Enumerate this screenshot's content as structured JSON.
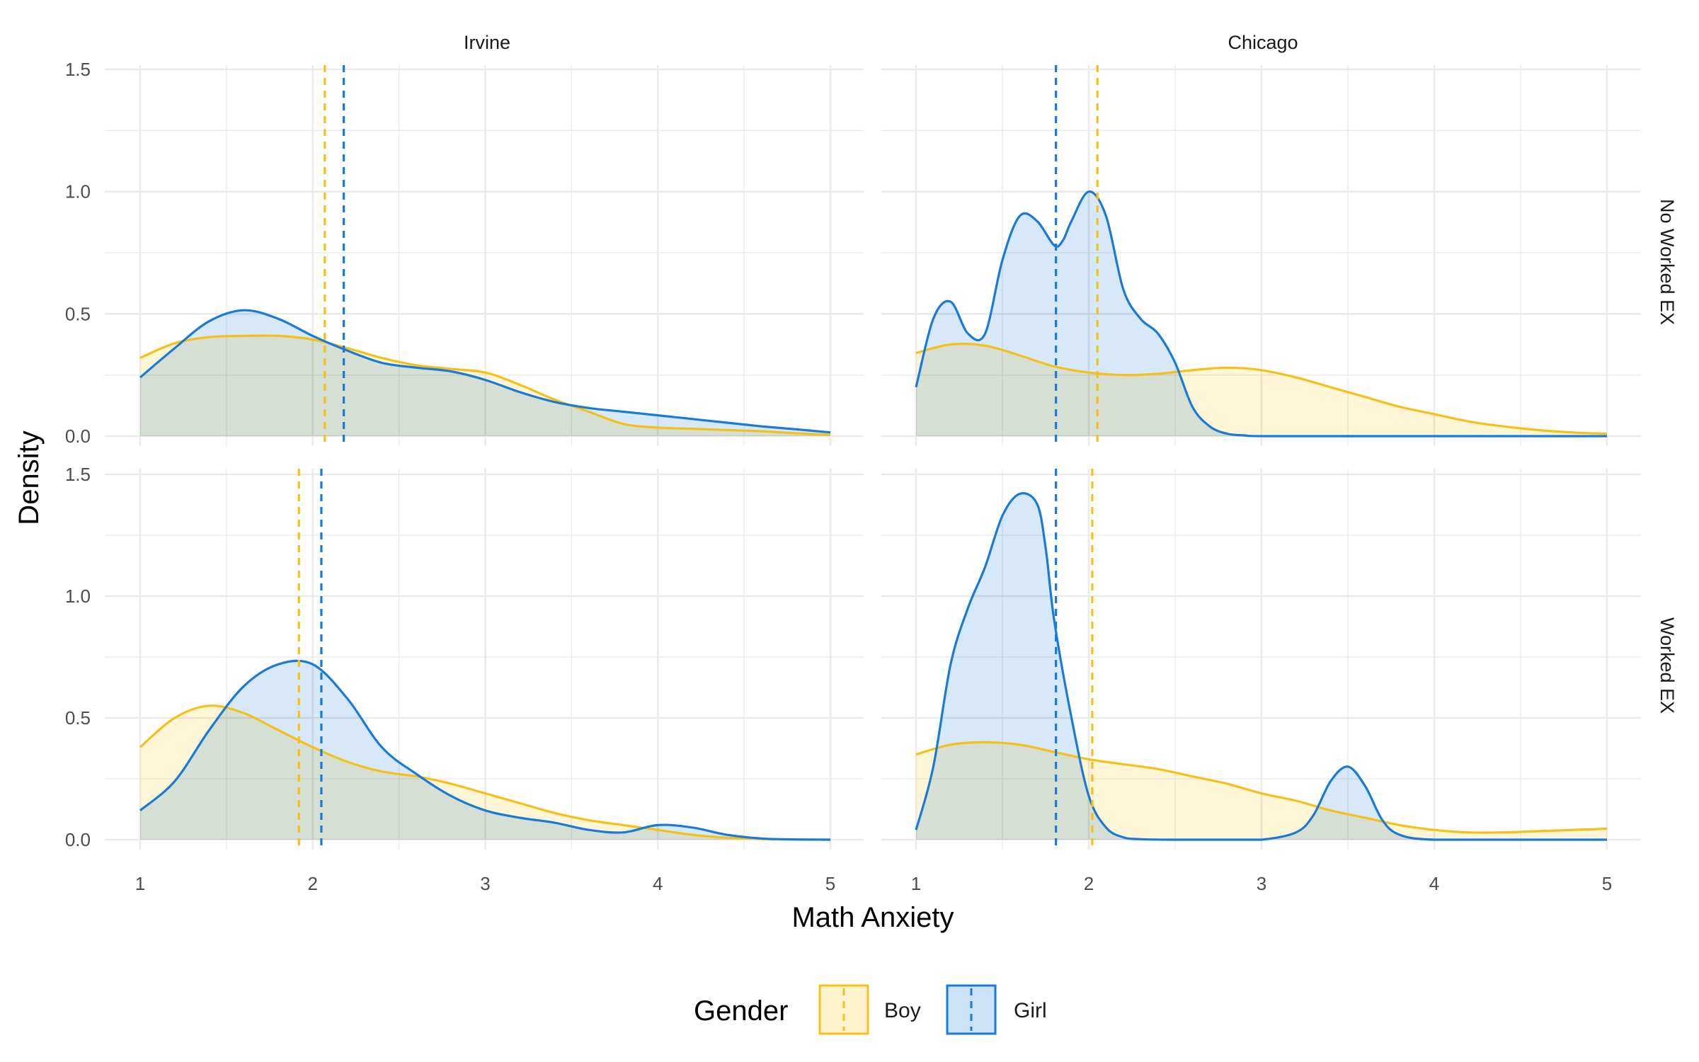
{
  "chart_data": {
    "type": "area",
    "subtype": "faceted density plot",
    "xlabel": "Math Anxiety",
    "ylabel": "Density",
    "xlim": [
      1,
      5
    ],
    "ylim": [
      0,
      1.5
    ],
    "x_ticks": [
      "1",
      "2",
      "3",
      "4",
      "5"
    ],
    "y_ticks": [
      "0.0",
      "0.5",
      "1.0",
      "1.5"
    ],
    "grid": true,
    "columns": [
      "Irvine",
      "Chicago"
    ],
    "rows": [
      "No Worked EX",
      "Worked EX"
    ],
    "legend": {
      "title": "Gender",
      "placement": "bottom",
      "items": [
        {
          "name": "Boy",
          "line": "#F5C01A",
          "fill": "#FFF3CD"
        },
        {
          "name": "Girl",
          "line": "#1A7AD4",
          "fill": "#CBE2F7"
        }
      ]
    },
    "colors": {
      "overlap_fill": "#D1DDD3"
    },
    "panels": [
      {
        "col": "Irvine",
        "row": "No Worked EX",
        "series": [
          {
            "name": "Boy",
            "mean": 2.07,
            "x": [
              1,
              1.2,
              1.4,
              1.6,
              1.8,
              2,
              2.2,
              2.4,
              2.6,
              2.8,
              3,
              3.2,
              3.4,
              3.6,
              3.8,
              4,
              4.2,
              4.4,
              4.6,
              4.8,
              5
            ],
            "y": [
              0.32,
              0.38,
              0.405,
              0.41,
              0.41,
              0.395,
              0.36,
              0.32,
              0.29,
              0.275,
              0.26,
              0.21,
              0.15,
              0.1,
              0.05,
              0.035,
              0.03,
              0.025,
              0.02,
              0.012,
              0.005
            ]
          },
          {
            "name": "Girl",
            "mean": 2.18,
            "x": [
              1,
              1.2,
              1.4,
              1.6,
              1.8,
              2,
              2.2,
              2.4,
              2.6,
              2.8,
              3,
              3.2,
              3.4,
              3.6,
              3.8,
              4,
              4.2,
              4.4,
              4.6,
              4.8,
              5
            ],
            "y": [
              0.24,
              0.36,
              0.47,
              0.515,
              0.48,
              0.41,
              0.35,
              0.3,
              0.28,
              0.265,
              0.23,
              0.18,
              0.14,
              0.115,
              0.1,
              0.085,
              0.07,
              0.055,
              0.04,
              0.028,
              0.015
            ]
          }
        ]
      },
      {
        "col": "Chicago",
        "row": "No Worked EX",
        "series": [
          {
            "name": "Boy",
            "mean": 2.05,
            "x": [
              1,
              1.2,
              1.4,
              1.6,
              1.8,
              2,
              2.2,
              2.4,
              2.6,
              2.8,
              3,
              3.2,
              3.4,
              3.6,
              3.8,
              4,
              4.2,
              4.4,
              4.6,
              4.8,
              5
            ],
            "y": [
              0.34,
              0.375,
              0.37,
              0.33,
              0.285,
              0.26,
              0.25,
              0.255,
              0.27,
              0.28,
              0.27,
              0.24,
              0.2,
              0.16,
              0.12,
              0.09,
              0.06,
              0.04,
              0.025,
              0.015,
              0.01
            ]
          },
          {
            "name": "Girl",
            "mean": 1.81,
            "x": [
              1,
              1.1,
              1.2,
              1.3,
              1.4,
              1.5,
              1.6,
              1.7,
              1.8,
              1.85,
              1.9,
              2,
              2.1,
              2.2,
              2.3,
              2.4,
              2.5,
              2.6,
              2.7,
              2.8,
              2.9,
              3,
              3.5,
              4,
              4.5,
              5
            ],
            "y": [
              0.2,
              0.48,
              0.55,
              0.42,
              0.42,
              0.72,
              0.9,
              0.88,
              0.78,
              0.8,
              0.88,
              1.0,
              0.9,
              0.6,
              0.48,
              0.42,
              0.3,
              0.12,
              0.04,
              0.01,
              0.003,
              0,
              0,
              0,
              0,
              0
            ]
          }
        ]
      },
      {
        "col": "Irvine",
        "row": "Worked EX",
        "series": [
          {
            "name": "Boy",
            "mean": 1.92,
            "x": [
              1,
              1.2,
              1.4,
              1.6,
              1.8,
              2,
              2.2,
              2.4,
              2.6,
              2.8,
              3,
              3.2,
              3.4,
              3.6,
              3.8,
              4,
              4.2,
              4.4,
              4.6,
              4.8,
              5
            ],
            "y": [
              0.38,
              0.5,
              0.55,
              0.52,
              0.45,
              0.38,
              0.32,
              0.28,
              0.26,
              0.23,
              0.19,
              0.15,
              0.11,
              0.08,
              0.06,
              0.04,
              0.02,
              0.008,
              0.003,
              0.001,
              0
            ]
          },
          {
            "name": "Girl",
            "mean": 2.05,
            "x": [
              1,
              1.2,
              1.4,
              1.6,
              1.8,
              2,
              2.2,
              2.4,
              2.6,
              2.8,
              3,
              3.2,
              3.4,
              3.6,
              3.8,
              4,
              4.2,
              4.4,
              4.6,
              4.8,
              5
            ],
            "y": [
              0.12,
              0.24,
              0.45,
              0.63,
              0.72,
              0.72,
              0.58,
              0.38,
              0.27,
              0.18,
              0.12,
              0.09,
              0.07,
              0.04,
              0.03,
              0.06,
              0.05,
              0.02,
              0.005,
              0.001,
              0
            ]
          }
        ]
      },
      {
        "col": "Chicago",
        "row": "Worked EX",
        "series": [
          {
            "name": "Boy",
            "mean": 2.02,
            "x": [
              1,
              1.2,
              1.4,
              1.6,
              1.8,
              2,
              2.2,
              2.4,
              2.6,
              2.8,
              3,
              3.2,
              3.4,
              3.6,
              3.8,
              4,
              4.2,
              4.4,
              4.6,
              4.8,
              5
            ],
            "y": [
              0.35,
              0.39,
              0.4,
              0.39,
              0.36,
              0.33,
              0.31,
              0.29,
              0.26,
              0.23,
              0.19,
              0.16,
              0.12,
              0.09,
              0.06,
              0.04,
              0.03,
              0.03,
              0.035,
              0.04,
              0.045
            ]
          },
          {
            "name": "Girl",
            "mean": 1.81,
            "x": [
              1,
              1.1,
              1.2,
              1.3,
              1.4,
              1.5,
              1.6,
              1.7,
              1.75,
              1.8,
              1.9,
              2,
              2.1,
              2.2,
              2.3,
              2.5,
              2.8,
              3,
              3.2,
              3.3,
              3.4,
              3.5,
              3.6,
              3.7,
              3.8,
              4,
              4.5,
              5
            ],
            "y": [
              0.04,
              0.3,
              0.72,
              0.95,
              1.12,
              1.33,
              1.42,
              1.38,
              1.2,
              0.9,
              0.5,
              0.18,
              0.05,
              0.01,
              0.002,
              0,
              0,
              0,
              0.03,
              0.1,
              0.24,
              0.3,
              0.22,
              0.08,
              0.02,
              0,
              0,
              0
            ]
          }
        ]
      }
    ]
  }
}
